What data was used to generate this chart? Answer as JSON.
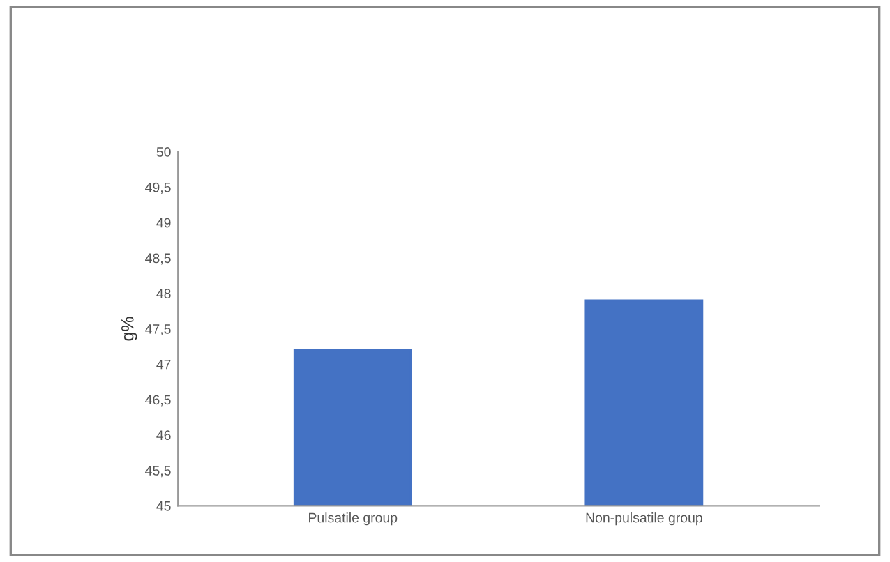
{
  "chart_data": {
    "type": "bar",
    "ylabel": "g%",
    "categories": [
      "Pulsatile group",
      "Non-pulsatile group"
    ],
    "values": [
      47.2,
      47.9
    ],
    "color": "#4472c4",
    "ylim": [
      45,
      50
    ],
    "yticks": [
      45,
      {
        "value": 45.5,
        "label": "45,5"
      },
      46,
      {
        "value": 46.5,
        "label": "46,5"
      },
      47,
      {
        "value": 47.5,
        "label": "47,5"
      },
      48,
      {
        "value": 48.5,
        "label": "48,5"
      },
      49,
      {
        "value": 49.5,
        "label": "49,5"
      },
      50
    ],
    "grid": false
  }
}
